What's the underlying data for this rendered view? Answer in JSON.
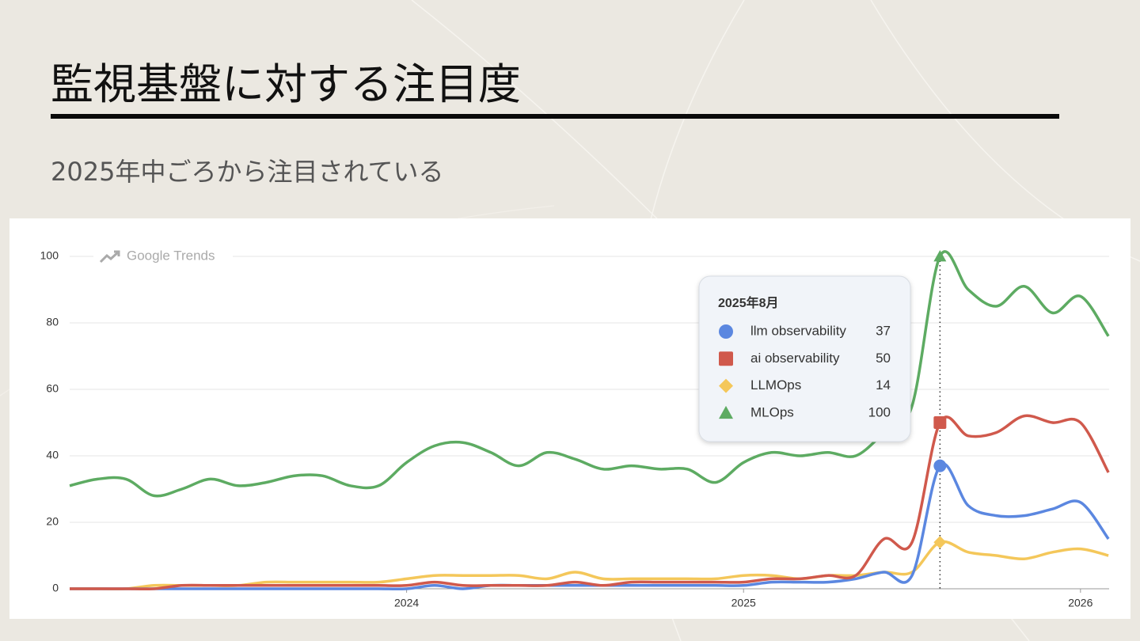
{
  "slide": {
    "title": "監視基盤に対する注目度",
    "subtitle": "2025年中ごろから注目されている"
  },
  "chart_data": {
    "type": "line",
    "watermark": "Google Trends",
    "x": [
      2023,
      2023.083,
      2023.167,
      2023.25,
      2023.333,
      2023.417,
      2023.5,
      2023.583,
      2023.667,
      2023.75,
      2023.833,
      2023.917,
      2024,
      2024.083,
      2024.167,
      2024.25,
      2024.333,
      2024.417,
      2024.5,
      2024.583,
      2024.667,
      2024.75,
      2024.833,
      2024.917,
      2025,
      2025.083,
      2025.167,
      2025.25,
      2025.333,
      2025.417,
      2025.5,
      2025.583,
      2025.667,
      2025.75,
      2025.833,
      2025.917,
      2026,
      2026.083
    ],
    "xlim": [
      2023,
      2026.085
    ],
    "xticks": [
      2024,
      2025,
      2026
    ],
    "ylim": [
      0,
      100
    ],
    "yticks": [
      0,
      20,
      40,
      60,
      80,
      100
    ],
    "grid": true,
    "series": [
      {
        "name": "llm observability",
        "color": "#5b87e0",
        "marker": "circle",
        "values": [
          0,
          0,
          0,
          0,
          0,
          0,
          0,
          0,
          0,
          0,
          0,
          0,
          0,
          1,
          0,
          1,
          1,
          1,
          1,
          1,
          1,
          1,
          1,
          1,
          1,
          2,
          2,
          2,
          3,
          5,
          4,
          37,
          25,
          22,
          22,
          24,
          26,
          15
        ]
      },
      {
        "name": "ai observability",
        "color": "#d0594c",
        "marker": "square",
        "values": [
          0,
          0,
          0,
          0,
          1,
          1,
          1,
          1,
          1,
          1,
          1,
          1,
          1,
          2,
          1,
          1,
          1,
          1,
          2,
          1,
          2,
          2,
          2,
          2,
          2,
          3,
          3,
          4,
          4,
          15,
          14,
          50,
          46,
          47,
          52,
          50,
          50,
          35
        ]
      },
      {
        "name": "LLMOps",
        "color": "#f4c75a",
        "marker": "diamond",
        "values": [
          0,
          0,
          0,
          1,
          1,
          1,
          1,
          2,
          2,
          2,
          2,
          2,
          3,
          4,
          4,
          4,
          4,
          3,
          5,
          3,
          3,
          3,
          3,
          3,
          4,
          4,
          3,
          4,
          4,
          5,
          5,
          14,
          11,
          10,
          9,
          11,
          12,
          10
        ]
      },
      {
        "name": "MLOps",
        "color": "#5dab62",
        "marker": "triangle",
        "values": [
          31,
          33,
          33,
          28,
          30,
          33,
          31,
          32,
          34,
          34,
          31,
          31,
          38,
          43,
          44,
          41,
          37,
          41,
          39,
          36,
          37,
          36,
          36,
          32,
          38,
          41,
          40,
          41,
          40,
          47,
          55,
          100,
          90,
          85,
          91,
          83,
          88,
          76
        ]
      }
    ],
    "tooltip": {
      "title": "2025年8月",
      "x": 2025.583
    }
  }
}
